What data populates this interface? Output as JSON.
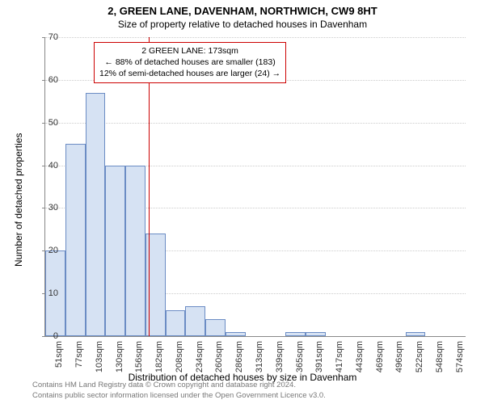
{
  "title": "2, GREEN LANE, DAVENHAM, NORTHWICH, CW9 8HT",
  "subtitle": "Size of property relative to detached houses in Davenham",
  "chart": {
    "type": "histogram",
    "ylabel": "Number of detached properties",
    "xlabel": "Distribution of detached houses by size in Davenham",
    "ylim": [
      0,
      70
    ],
    "ytick_step": 10,
    "bar_fill": "#d6e2f3",
    "bar_border": "#6b8cc4",
    "grid_color": "#cccccc",
    "axis_color": "#888888",
    "background_color": "#ffffff",
    "categories": [
      "51sqm",
      "77sqm",
      "103sqm",
      "130sqm",
      "156sqm",
      "182sqm",
      "208sqm",
      "234sqm",
      "260sqm",
      "286sqm",
      "313sqm",
      "339sqm",
      "365sqm",
      "391sqm",
      "417sqm",
      "443sqm",
      "469sqm",
      "496sqm",
      "522sqm",
      "548sqm",
      "574sqm"
    ],
    "values": [
      20,
      45,
      57,
      40,
      40,
      24,
      6,
      7,
      4,
      1,
      0,
      0,
      1,
      1,
      0,
      0,
      0,
      0,
      1,
      0,
      0
    ],
    "marker": {
      "position_sqm": 173,
      "color": "#cc0000",
      "box_lines": [
        "2 GREEN LANE: 173sqm",
        "← 88% of detached houses are smaller (183)",
        "12% of semi-detached houses are larger (24) →"
      ]
    }
  },
  "footer": {
    "line1": "Contains HM Land Registry data © Crown copyright and database right 2024.",
    "line2": "Contains public sector information licensed under the Open Government Licence v3.0."
  }
}
